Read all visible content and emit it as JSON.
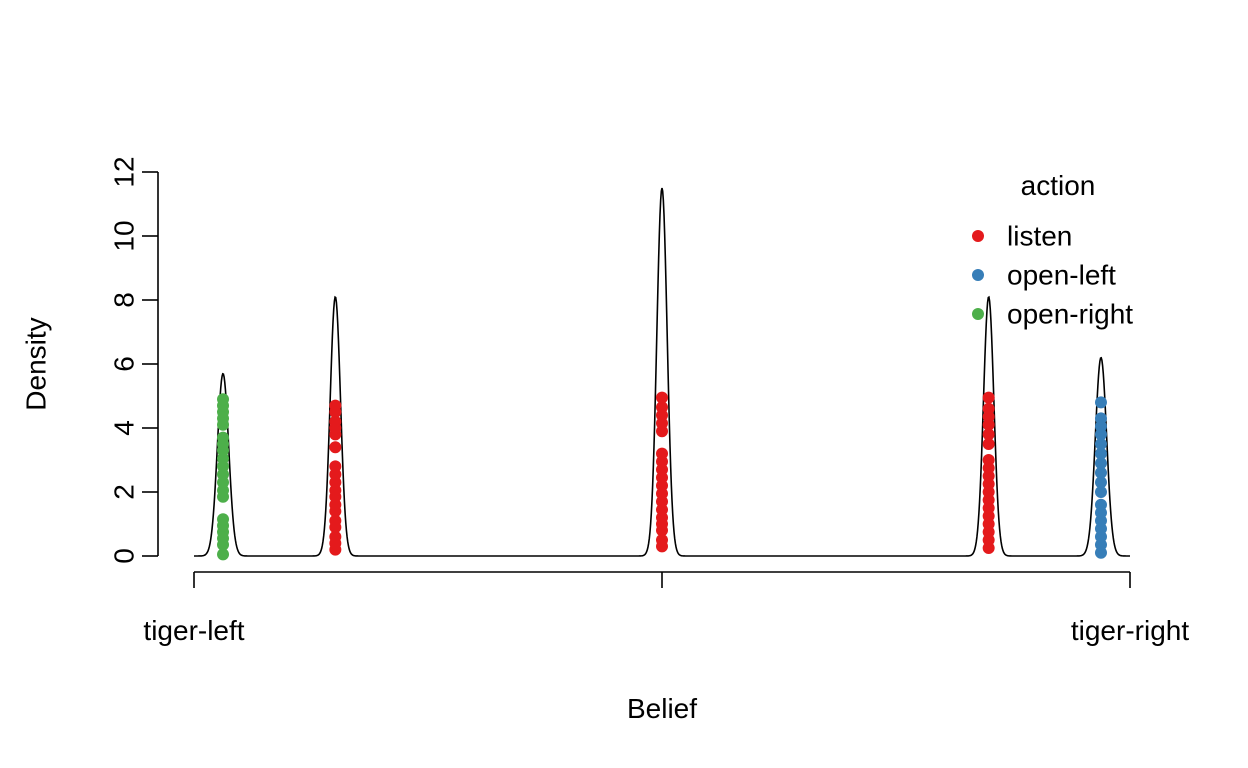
{
  "chart_data": {
    "type": "scatter",
    "title": "",
    "xlabel": "Belief",
    "ylabel": "Density",
    "xlim": [
      0,
      1
    ],
    "ylim": [
      0,
      12
    ],
    "x_ticks": [
      {
        "value": 0,
        "label": "tiger-left"
      },
      {
        "value": 0.5,
        "label": ""
      },
      {
        "value": 1,
        "label": "tiger-right"
      }
    ],
    "y_ticks": [
      0,
      2,
      4,
      6,
      8,
      10,
      12
    ],
    "grid": false,
    "density_curve": {
      "peaks": [
        {
          "x": 0.031,
          "height": 5.7,
          "sd": 0.006
        },
        {
          "x": 0.151,
          "height": 8.1,
          "sd": 0.0055
        },
        {
          "x": 0.5,
          "height": 11.5,
          "sd": 0.0055
        },
        {
          "x": 0.849,
          "height": 8.1,
          "sd": 0.0055
        },
        {
          "x": 0.969,
          "height": 6.2,
          "sd": 0.006
        }
      ],
      "x_range": [
        0,
        1
      ]
    },
    "legend": {
      "title": "action",
      "position": "top-right",
      "entries": [
        {
          "label": "listen",
          "color": "#e41a1c"
        },
        {
          "label": "open-left",
          "color": "#377eb8"
        },
        {
          "label": "open-right",
          "color": "#4daf4a"
        }
      ]
    },
    "series": [
      {
        "name": "open-right",
        "color": "#4daf4a",
        "points": [
          {
            "x": 0.031,
            "y": 0.05
          },
          {
            "x": 0.031,
            "y": 0.35
          },
          {
            "x": 0.031,
            "y": 0.55
          },
          {
            "x": 0.031,
            "y": 0.75
          },
          {
            "x": 0.031,
            "y": 0.95
          },
          {
            "x": 0.031,
            "y": 1.15
          },
          {
            "x": 0.031,
            "y": 1.85
          },
          {
            "x": 0.031,
            "y": 2.05
          },
          {
            "x": 0.031,
            "y": 2.3
          },
          {
            "x": 0.031,
            "y": 2.55
          },
          {
            "x": 0.031,
            "y": 2.8
          },
          {
            "x": 0.031,
            "y": 3.05
          },
          {
            "x": 0.031,
            "y": 3.3
          },
          {
            "x": 0.031,
            "y": 3.5
          },
          {
            "x": 0.031,
            "y": 3.7
          },
          {
            "x": 0.031,
            "y": 4.1
          },
          {
            "x": 0.031,
            "y": 4.3
          },
          {
            "x": 0.031,
            "y": 4.5
          },
          {
            "x": 0.031,
            "y": 4.7
          },
          {
            "x": 0.031,
            "y": 4.9
          }
        ]
      },
      {
        "name": "listen",
        "color": "#e41a1c",
        "points": [
          {
            "x": 0.151,
            "y": 0.2
          },
          {
            "x": 0.151,
            "y": 0.4
          },
          {
            "x": 0.151,
            "y": 0.6
          },
          {
            "x": 0.151,
            "y": 0.9
          },
          {
            "x": 0.151,
            "y": 1.1
          },
          {
            "x": 0.151,
            "y": 1.4
          },
          {
            "x": 0.151,
            "y": 1.6
          },
          {
            "x": 0.151,
            "y": 1.85
          },
          {
            "x": 0.151,
            "y": 2.05
          },
          {
            "x": 0.151,
            "y": 2.3
          },
          {
            "x": 0.151,
            "y": 2.55
          },
          {
            "x": 0.151,
            "y": 2.8
          },
          {
            "x": 0.151,
            "y": 3.4
          },
          {
            "x": 0.151,
            "y": 3.8
          },
          {
            "x": 0.151,
            "y": 4.0
          },
          {
            "x": 0.151,
            "y": 4.2
          },
          {
            "x": 0.151,
            "y": 4.5
          },
          {
            "x": 0.151,
            "y": 4.7
          },
          {
            "x": 0.5,
            "y": 0.3
          },
          {
            "x": 0.5,
            "y": 0.5
          },
          {
            "x": 0.5,
            "y": 0.8
          },
          {
            "x": 0.5,
            "y": 1.0
          },
          {
            "x": 0.5,
            "y": 1.2
          },
          {
            "x": 0.5,
            "y": 1.45
          },
          {
            "x": 0.5,
            "y": 1.7
          },
          {
            "x": 0.5,
            "y": 1.95
          },
          {
            "x": 0.5,
            "y": 2.2
          },
          {
            "x": 0.5,
            "y": 2.45
          },
          {
            "x": 0.5,
            "y": 2.7
          },
          {
            "x": 0.5,
            "y": 2.95
          },
          {
            "x": 0.5,
            "y": 3.2
          },
          {
            "x": 0.5,
            "y": 3.9
          },
          {
            "x": 0.5,
            "y": 4.15
          },
          {
            "x": 0.5,
            "y": 4.4
          },
          {
            "x": 0.5,
            "y": 4.65
          },
          {
            "x": 0.5,
            "y": 4.95
          },
          {
            "x": 0.849,
            "y": 0.25
          },
          {
            "x": 0.849,
            "y": 0.5
          },
          {
            "x": 0.849,
            "y": 0.75
          },
          {
            "x": 0.849,
            "y": 1.0
          },
          {
            "x": 0.849,
            "y": 1.25
          },
          {
            "x": 0.849,
            "y": 1.5
          },
          {
            "x": 0.849,
            "y": 1.75
          },
          {
            "x": 0.849,
            "y": 2.0
          },
          {
            "x": 0.849,
            "y": 2.25
          },
          {
            "x": 0.849,
            "y": 2.5
          },
          {
            "x": 0.849,
            "y": 2.75
          },
          {
            "x": 0.849,
            "y": 3.0
          },
          {
            "x": 0.849,
            "y": 3.5
          },
          {
            "x": 0.849,
            "y": 3.8
          },
          {
            "x": 0.849,
            "y": 4.1
          },
          {
            "x": 0.849,
            "y": 4.35
          },
          {
            "x": 0.849,
            "y": 4.6
          },
          {
            "x": 0.849,
            "y": 4.95
          }
        ]
      },
      {
        "name": "open-left",
        "color": "#377eb8",
        "points": [
          {
            "x": 0.969,
            "y": 0.1
          },
          {
            "x": 0.969,
            "y": 0.35
          },
          {
            "x": 0.969,
            "y": 0.6
          },
          {
            "x": 0.969,
            "y": 0.85
          },
          {
            "x": 0.969,
            "y": 1.1
          },
          {
            "x": 0.969,
            "y": 1.35
          },
          {
            "x": 0.969,
            "y": 1.6
          },
          {
            "x": 0.969,
            "y": 2.0
          },
          {
            "x": 0.969,
            "y": 2.3
          },
          {
            "x": 0.969,
            "y": 2.6
          },
          {
            "x": 0.969,
            "y": 2.9
          },
          {
            "x": 0.969,
            "y": 3.2
          },
          {
            "x": 0.969,
            "y": 3.5
          },
          {
            "x": 0.969,
            "y": 3.8
          },
          {
            "x": 0.969,
            "y": 4.05
          },
          {
            "x": 0.969,
            "y": 4.3
          },
          {
            "x": 0.969,
            "y": 4.8
          }
        ]
      }
    ]
  }
}
